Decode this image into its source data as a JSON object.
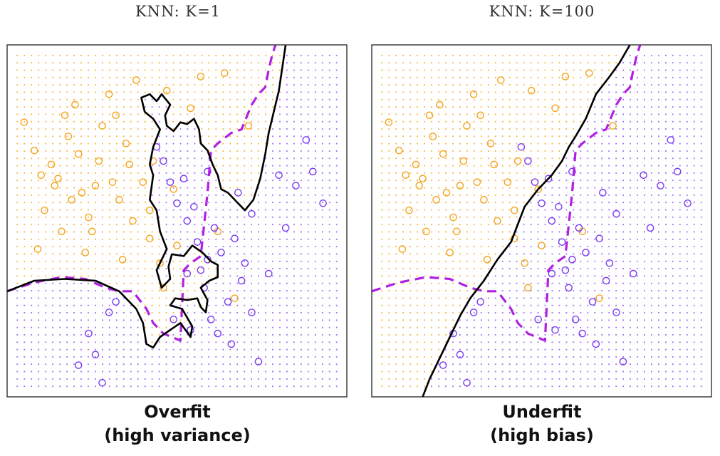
{
  "chart_data": [
    {
      "type": "scatter",
      "title": "KNN: K=1",
      "caption_line1": "Overfit",
      "caption_line2": "(high variance)",
      "colors": {
        "orange": "#f5a31a",
        "purple": "#7a3cf0",
        "boundary": "#000000",
        "bayes": "#b020e0"
      },
      "xlim": [
        0,
        1
      ],
      "ylim": [
        0,
        1
      ],
      "knn_boundary": [
        [
          0.0,
          0.3
        ],
        [
          0.08,
          0.33
        ],
        [
          0.17,
          0.335
        ],
        [
          0.26,
          0.33
        ],
        [
          0.33,
          0.3
        ],
        [
          0.38,
          0.25
        ],
        [
          0.4,
          0.21
        ],
        [
          0.41,
          0.15
        ],
        [
          0.43,
          0.14
        ],
        [
          0.45,
          0.17
        ],
        [
          0.48,
          0.19
        ],
        [
          0.51,
          0.21
        ],
        [
          0.54,
          0.17
        ],
        [
          0.545,
          0.2
        ],
        [
          0.515,
          0.25
        ],
        [
          0.48,
          0.26
        ],
        [
          0.495,
          0.28
        ],
        [
          0.53,
          0.275
        ],
        [
          0.56,
          0.28
        ],
        [
          0.57,
          0.255
        ],
        [
          0.585,
          0.24
        ],
        [
          0.59,
          0.275
        ],
        [
          0.57,
          0.31
        ],
        [
          0.595,
          0.33
        ],
        [
          0.62,
          0.34
        ],
        [
          0.62,
          0.375
        ],
        [
          0.6,
          0.385
        ],
        [
          0.575,
          0.41
        ],
        [
          0.545,
          0.43
        ],
        [
          0.52,
          0.4
        ],
        [
          0.485,
          0.405
        ],
        [
          0.475,
          0.37
        ],
        [
          0.48,
          0.335
        ],
        [
          0.455,
          0.31
        ],
        [
          0.44,
          0.36
        ],
        [
          0.47,
          0.42
        ],
        [
          0.45,
          0.47
        ],
        [
          0.44,
          0.53
        ],
        [
          0.42,
          0.56
        ],
        [
          0.43,
          0.63
        ],
        [
          0.42,
          0.66
        ],
        [
          0.43,
          0.71
        ],
        [
          0.45,
          0.76
        ],
        [
          0.43,
          0.79
        ],
        [
          0.405,
          0.81
        ],
        [
          0.395,
          0.85
        ],
        [
          0.42,
          0.86
        ],
        [
          0.44,
          0.84
        ],
        [
          0.455,
          0.86
        ],
        [
          0.48,
          0.83
        ],
        [
          0.465,
          0.8
        ],
        [
          0.47,
          0.77
        ],
        [
          0.49,
          0.755
        ],
        [
          0.51,
          0.78
        ],
        [
          0.53,
          0.775
        ],
        [
          0.55,
          0.79
        ],
        [
          0.565,
          0.76
        ],
        [
          0.57,
          0.72
        ],
        [
          0.59,
          0.7
        ],
        [
          0.605,
          0.66
        ],
        [
          0.62,
          0.63
        ],
        [
          0.63,
          0.59
        ],
        [
          0.65,
          0.58
        ],
        [
          0.67,
          0.56
        ],
        [
          0.7,
          0.53
        ],
        [
          0.725,
          0.56
        ],
        [
          0.745,
          0.62
        ],
        [
          0.76,
          0.69
        ],
        [
          0.77,
          0.75
        ],
        [
          0.8,
          0.87
        ],
        [
          0.82,
          1.0
        ]
      ],
      "bayes_boundary": [
        [
          0.0,
          0.3
        ],
        [
          0.08,
          0.325
        ],
        [
          0.16,
          0.34
        ],
        [
          0.23,
          0.335
        ],
        [
          0.29,
          0.31
        ],
        [
          0.33,
          0.3
        ],
        [
          0.37,
          0.3
        ],
        [
          0.41,
          0.25
        ],
        [
          0.43,
          0.21
        ],
        [
          0.46,
          0.18
        ],
        [
          0.51,
          0.16
        ],
        [
          0.52,
          0.36
        ],
        [
          0.54,
          0.38
        ],
        [
          0.57,
          0.4
        ],
        [
          0.59,
          0.58
        ],
        [
          0.6,
          0.7
        ],
        [
          0.62,
          0.72
        ],
        [
          0.66,
          0.75
        ],
        [
          0.69,
          0.76
        ],
        [
          0.72,
          0.83
        ],
        [
          0.74,
          0.86
        ],
        [
          0.76,
          0.88
        ],
        [
          0.77,
          0.93
        ],
        [
          0.78,
          0.97
        ],
        [
          0.79,
          1.0
        ]
      ],
      "orange_points": [
        [
          0.05,
          0.78
        ],
        [
          0.08,
          0.7
        ],
        [
          0.1,
          0.63
        ],
        [
          0.13,
          0.66
        ],
        [
          0.14,
          0.6
        ],
        [
          0.15,
          0.62
        ],
        [
          0.17,
          0.8
        ],
        [
          0.18,
          0.74
        ],
        [
          0.2,
          0.83
        ],
        [
          0.21,
          0.69
        ],
        [
          0.22,
          0.58
        ],
        [
          0.24,
          0.51
        ],
        [
          0.25,
          0.47
        ],
        [
          0.26,
          0.6
        ],
        [
          0.28,
          0.77
        ],
        [
          0.3,
          0.86
        ],
        [
          0.32,
          0.8
        ],
        [
          0.35,
          0.72
        ],
        [
          0.36,
          0.66
        ],
        [
          0.38,
          0.9
        ],
        [
          0.4,
          0.61
        ],
        [
          0.42,
          0.53
        ],
        [
          0.42,
          0.45
        ],
        [
          0.45,
          0.38
        ],
        [
          0.46,
          0.31
        ],
        [
          0.47,
          0.87
        ],
        [
          0.49,
          0.59
        ],
        [
          0.5,
          0.43
        ],
        [
          0.54,
          0.82
        ],
        [
          0.57,
          0.91
        ],
        [
          0.62,
          0.47
        ],
        [
          0.64,
          0.92
        ],
        [
          0.67,
          0.28
        ],
        [
          0.71,
          0.77
        ],
        [
          0.11,
          0.53
        ],
        [
          0.19,
          0.56
        ],
        [
          0.31,
          0.61
        ],
        [
          0.09,
          0.42
        ],
        [
          0.23,
          0.41
        ],
        [
          0.27,
          0.67
        ],
        [
          0.37,
          0.5
        ],
        [
          0.33,
          0.56
        ],
        [
          0.43,
          0.67
        ],
        [
          0.16,
          0.47
        ],
        [
          0.34,
          0.39
        ]
      ],
      "purple_points": [
        [
          0.44,
          0.71
        ],
        [
          0.46,
          0.67
        ],
        [
          0.48,
          0.61
        ],
        [
          0.5,
          0.55
        ],
        [
          0.52,
          0.62
        ],
        [
          0.53,
          0.5
        ],
        [
          0.55,
          0.54
        ],
        [
          0.56,
          0.44
        ],
        [
          0.57,
          0.36
        ],
        [
          0.58,
          0.31
        ],
        [
          0.59,
          0.64
        ],
        [
          0.6,
          0.22
        ],
        [
          0.61,
          0.48
        ],
        [
          0.62,
          0.18
        ],
        [
          0.63,
          0.41
        ],
        [
          0.65,
          0.27
        ],
        [
          0.66,
          0.15
        ],
        [
          0.67,
          0.45
        ],
        [
          0.68,
          0.58
        ],
        [
          0.69,
          0.33
        ],
        [
          0.7,
          0.38
        ],
        [
          0.72,
          0.24
        ],
        [
          0.74,
          0.1
        ],
        [
          0.77,
          0.35
        ],
        [
          0.8,
          0.63
        ],
        [
          0.82,
          0.48
        ],
        [
          0.85,
          0.6
        ],
        [
          0.88,
          0.73
        ],
        [
          0.9,
          0.64
        ],
        [
          0.93,
          0.55
        ],
        [
          0.32,
          0.27
        ],
        [
          0.3,
          0.24
        ],
        [
          0.24,
          0.18
        ],
        [
          0.26,
          0.12
        ],
        [
          0.21,
          0.09
        ],
        [
          0.28,
          0.04
        ],
        [
          0.49,
          0.22
        ],
        [
          0.53,
          0.35
        ],
        [
          0.72,
          0.52
        ],
        [
          0.54,
          0.19
        ],
        [
          0.59,
          0.39
        ]
      ]
    },
    {
      "type": "scatter",
      "title": "KNN: K=100",
      "caption_line1": "Underfit",
      "caption_line2": "(high bias)",
      "colors": {
        "orange": "#f5a31a",
        "purple": "#7a3cf0",
        "boundary": "#000000",
        "bayes": "#b020e0"
      },
      "xlim": [
        0,
        1
      ],
      "ylim": [
        0,
        1
      ],
      "knn_boundary": [
        [
          0.15,
          0.0
        ],
        [
          0.17,
          0.05
        ],
        [
          0.2,
          0.11
        ],
        [
          0.23,
          0.17
        ],
        [
          0.26,
          0.23
        ],
        [
          0.29,
          0.28
        ],
        [
          0.33,
          0.33
        ],
        [
          0.37,
          0.39
        ],
        [
          0.41,
          0.44
        ],
        [
          0.43,
          0.49
        ],
        [
          0.45,
          0.54
        ],
        [
          0.49,
          0.59
        ],
        [
          0.53,
          0.63
        ],
        [
          0.56,
          0.67
        ],
        [
          0.58,
          0.71
        ],
        [
          0.6,
          0.74
        ],
        [
          0.63,
          0.79
        ],
        [
          0.66,
          0.86
        ],
        [
          0.7,
          0.91
        ],
        [
          0.73,
          0.95
        ],
        [
          0.76,
          1.0
        ]
      ],
      "bayes_boundary": [
        [
          0.0,
          0.3
        ],
        [
          0.08,
          0.325
        ],
        [
          0.16,
          0.34
        ],
        [
          0.23,
          0.335
        ],
        [
          0.29,
          0.31
        ],
        [
          0.33,
          0.3
        ],
        [
          0.37,
          0.3
        ],
        [
          0.41,
          0.25
        ],
        [
          0.43,
          0.21
        ],
        [
          0.46,
          0.18
        ],
        [
          0.51,
          0.16
        ],
        [
          0.52,
          0.36
        ],
        [
          0.54,
          0.38
        ],
        [
          0.57,
          0.4
        ],
        [
          0.59,
          0.58
        ],
        [
          0.6,
          0.7
        ],
        [
          0.62,
          0.72
        ],
        [
          0.66,
          0.75
        ],
        [
          0.69,
          0.76
        ],
        [
          0.72,
          0.83
        ],
        [
          0.74,
          0.86
        ],
        [
          0.76,
          0.88
        ],
        [
          0.77,
          0.93
        ],
        [
          0.78,
          0.97
        ],
        [
          0.79,
          1.0
        ]
      ],
      "orange_points": [
        [
          0.05,
          0.78
        ],
        [
          0.08,
          0.7
        ],
        [
          0.1,
          0.63
        ],
        [
          0.13,
          0.66
        ],
        [
          0.14,
          0.6
        ],
        [
          0.15,
          0.62
        ],
        [
          0.17,
          0.8
        ],
        [
          0.18,
          0.74
        ],
        [
          0.2,
          0.83
        ],
        [
          0.21,
          0.69
        ],
        [
          0.22,
          0.58
        ],
        [
          0.24,
          0.51
        ],
        [
          0.25,
          0.47
        ],
        [
          0.26,
          0.6
        ],
        [
          0.28,
          0.77
        ],
        [
          0.3,
          0.86
        ],
        [
          0.32,
          0.8
        ],
        [
          0.35,
          0.72
        ],
        [
          0.36,
          0.66
        ],
        [
          0.38,
          0.9
        ],
        [
          0.4,
          0.61
        ],
        [
          0.42,
          0.53
        ],
        [
          0.42,
          0.45
        ],
        [
          0.45,
          0.38
        ],
        [
          0.46,
          0.31
        ],
        [
          0.47,
          0.87
        ],
        [
          0.49,
          0.59
        ],
        [
          0.5,
          0.43
        ],
        [
          0.54,
          0.82
        ],
        [
          0.57,
          0.91
        ],
        [
          0.62,
          0.47
        ],
        [
          0.64,
          0.92
        ],
        [
          0.67,
          0.28
        ],
        [
          0.71,
          0.77
        ],
        [
          0.11,
          0.53
        ],
        [
          0.19,
          0.56
        ],
        [
          0.31,
          0.61
        ],
        [
          0.09,
          0.42
        ],
        [
          0.23,
          0.41
        ],
        [
          0.27,
          0.67
        ],
        [
          0.37,
          0.5
        ],
        [
          0.33,
          0.56
        ],
        [
          0.43,
          0.67
        ],
        [
          0.16,
          0.47
        ],
        [
          0.34,
          0.39
        ]
      ],
      "purple_points": [
        [
          0.44,
          0.71
        ],
        [
          0.46,
          0.67
        ],
        [
          0.48,
          0.61
        ],
        [
          0.5,
          0.55
        ],
        [
          0.52,
          0.62
        ],
        [
          0.53,
          0.5
        ],
        [
          0.55,
          0.54
        ],
        [
          0.56,
          0.44
        ],
        [
          0.57,
          0.36
        ],
        [
          0.58,
          0.31
        ],
        [
          0.59,
          0.64
        ],
        [
          0.6,
          0.22
        ],
        [
          0.61,
          0.48
        ],
        [
          0.62,
          0.18
        ],
        [
          0.63,
          0.41
        ],
        [
          0.65,
          0.27
        ],
        [
          0.66,
          0.15
        ],
        [
          0.67,
          0.45
        ],
        [
          0.68,
          0.58
        ],
        [
          0.69,
          0.33
        ],
        [
          0.7,
          0.38
        ],
        [
          0.72,
          0.24
        ],
        [
          0.74,
          0.1
        ],
        [
          0.77,
          0.35
        ],
        [
          0.8,
          0.63
        ],
        [
          0.82,
          0.48
        ],
        [
          0.85,
          0.6
        ],
        [
          0.88,
          0.73
        ],
        [
          0.9,
          0.64
        ],
        [
          0.93,
          0.55
        ],
        [
          0.32,
          0.27
        ],
        [
          0.3,
          0.24
        ],
        [
          0.24,
          0.18
        ],
        [
          0.26,
          0.12
        ],
        [
          0.21,
          0.09
        ],
        [
          0.28,
          0.04
        ],
        [
          0.49,
          0.22
        ],
        [
          0.53,
          0.35
        ],
        [
          0.72,
          0.52
        ],
        [
          0.54,
          0.19
        ],
        [
          0.59,
          0.39
        ]
      ]
    }
  ]
}
